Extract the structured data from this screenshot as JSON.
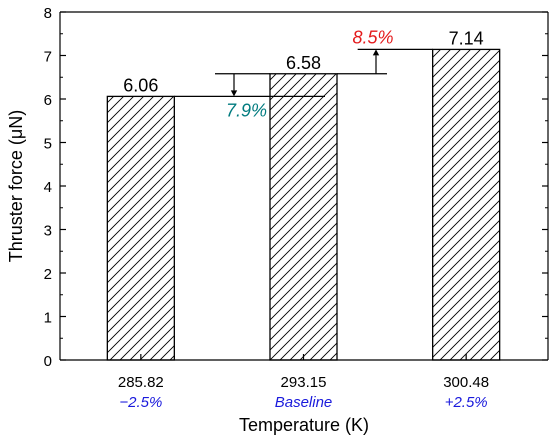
{
  "chart_data": {
    "type": "bar",
    "title": "",
    "categories": [
      "285.82",
      "293.15",
      "300.48"
    ],
    "category_sublabels": [
      "−2.5%",
      "Baseline",
      "+2.5%"
    ],
    "values": [
      6.06,
      6.58,
      7.14
    ],
    "value_labels": [
      "6.06",
      "6.58",
      "7.14"
    ],
    "xlabel": "Temperature (K)",
    "ylabel": "Thruster force (μN)",
    "ylim": [
      0,
      8
    ],
    "yticks": [
      "0",
      "1",
      "2",
      "3",
      "4",
      "5",
      "6",
      "7",
      "8"
    ],
    "grid": false,
    "bar_fill": "hatched",
    "annotations": [
      {
        "text": "7.9%",
        "from_value": 6.58,
        "to_value": 6.06,
        "color": "#007b7f"
      },
      {
        "text": "8.5%",
        "from_value": 6.58,
        "to_value": 7.14,
        "color": "#e41a1c"
      }
    ],
    "colors": {
      "sublabel": "#1a1adc",
      "axis": "#000000",
      "bar_edge": "#000000"
    }
  }
}
